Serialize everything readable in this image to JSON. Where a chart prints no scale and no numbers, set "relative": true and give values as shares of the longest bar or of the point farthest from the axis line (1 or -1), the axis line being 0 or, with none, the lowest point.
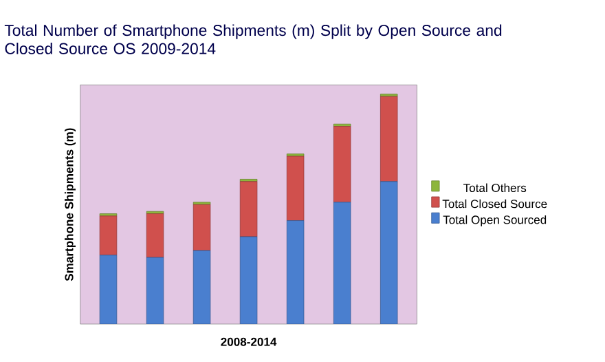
{
  "chart_data": {
    "type": "bar",
    "title": "Total Number of Smartphone Shipments (m) Split by Open Source and Closed Source OS 2009-2014",
    "xlabel": "2008-2014",
    "ylabel": "Smartphone Shipments (m)",
    "categories": [
      null,
      null,
      null,
      null,
      null,
      null,
      null
    ],
    "stacked": true,
    "relative": true,
    "legend": "right",
    "series": [
      {
        "name": "Total Open Sourced",
        "color": "#4a7fcf",
        "values": [
          0.3,
          0.29,
          0.32,
          0.38,
          0.45,
          0.53,
          0.62
        ]
      },
      {
        "name": "Total Closed Source",
        "color": "#d0504d",
        "values": [
          0.17,
          0.19,
          0.2,
          0.24,
          0.28,
          0.33,
          0.37
        ]
      },
      {
        "name": "Total Others",
        "color": "#8db63c",
        "values": [
          0.01,
          0.01,
          0.01,
          0.01,
          0.01,
          0.01,
          0.01
        ]
      }
    ]
  }
}
